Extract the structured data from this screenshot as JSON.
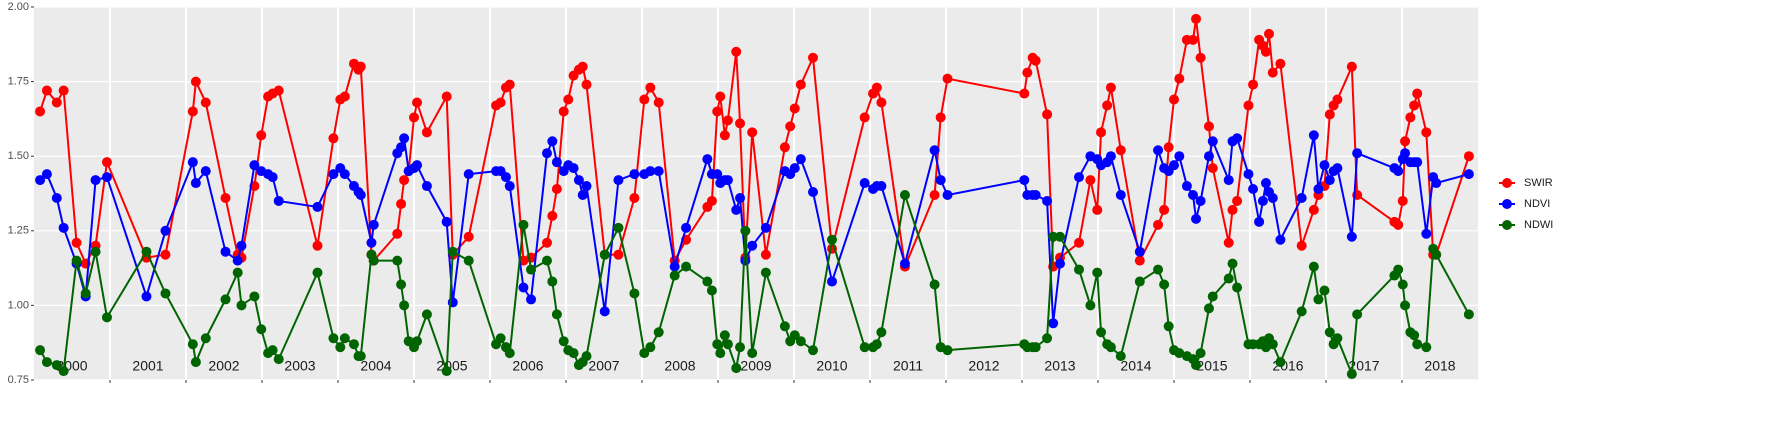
{
  "chart_data": {
    "type": "line",
    "x": [
      2000.08,
      2000.17,
      2000.3,
      2000.39,
      2000.56,
      2000.68,
      2000.81,
      2000.96,
      2001.48,
      2001.73,
      2002.09,
      2002.13,
      2002.26,
      2002.52,
      2002.68,
      2002.73,
      2002.9,
      2002.99,
      2003.08,
      2003.14,
      2003.22,
      2003.73,
      2003.94,
      2004.03,
      2004.09,
      2004.21,
      2004.27,
      2004.3,
      2004.44,
      2004.47,
      2004.78,
      2004.83,
      2004.87,
      2004.93,
      2005.0,
      2005.04,
      2005.17,
      2005.43,
      2005.51,
      2005.72,
      2006.08,
      2006.14,
      2006.21,
      2006.26,
      2006.44,
      2006.54,
      2006.75,
      2006.82,
      2006.88,
      2006.97,
      2007.03,
      2007.1,
      2007.17,
      2007.22,
      2007.27,
      2007.51,
      2007.69,
      2007.9,
      2008.03,
      2008.11,
      2008.22,
      2008.43,
      2008.58,
      2008.86,
      2008.92,
      2008.99,
      2009.03,
      2009.09,
      2009.13,
      2009.24,
      2009.29,
      2009.36,
      2009.45,
      2009.63,
      2009.88,
      2009.95,
      2010.01,
      2010.09,
      2010.25,
      2010.5,
      2010.93,
      2011.04,
      2011.09,
      2011.15,
      2011.46,
      2011.85,
      2011.93,
      2012.02,
      2013.03,
      2013.07,
      2013.14,
      2013.18,
      2013.33,
      2013.41,
      2013.5,
      2013.75,
      2013.9,
      2013.99,
      2014.04,
      2014.12,
      2014.17,
      2014.3,
      2014.55,
      2014.79,
      2014.87,
      2014.93,
      2015.0,
      2015.07,
      2015.17,
      2015.25,
      2015.29,
      2015.35,
      2015.46,
      2015.51,
      2015.72,
      2015.77,
      2015.83,
      2015.98,
      2016.04,
      2016.12,
      2016.17,
      2016.21,
      2016.25,
      2016.3,
      2016.4,
      2016.68,
      2016.84,
      2016.9,
      2016.98,
      2017.05,
      2017.1,
      2017.15,
      2017.34,
      2017.41,
      2017.9,
      2017.95,
      2018.01,
      2018.04,
      2018.11,
      2018.16,
      2018.2,
      2018.32,
      2018.41,
      2018.45,
      2018.88
    ],
    "series": [
      {
        "name": "SWIR",
        "color": "#ff0000",
        "values": [
          1.65,
          1.72,
          1.68,
          1.72,
          1.21,
          1.14,
          1.2,
          1.48,
          1.16,
          1.17,
          1.65,
          1.75,
          1.68,
          1.36,
          1.17,
          1.16,
          1.4,
          1.57,
          1.7,
          1.71,
          1.72,
          1.2,
          1.56,
          1.69,
          1.7,
          1.81,
          1.79,
          1.8,
          1.17,
          1.15,
          1.24,
          1.34,
          1.42,
          1.45,
          1.63,
          1.68,
          1.58,
          1.7,
          1.17,
          1.23,
          1.67,
          1.68,
          1.73,
          1.74,
          1.15,
          1.16,
          1.21,
          1.3,
          1.39,
          1.65,
          1.69,
          1.77,
          1.79,
          1.8,
          1.74,
          1.17,
          1.17,
          1.36,
          1.69,
          1.73,
          1.68,
          1.15,
          1.22,
          1.33,
          1.35,
          1.65,
          1.7,
          1.57,
          1.62,
          1.85,
          1.61,
          1.16,
          1.58,
          1.17,
          1.53,
          1.6,
          1.66,
          1.74,
          1.83,
          1.19,
          1.63,
          1.71,
          1.73,
          1.68,
          1.13,
          1.37,
          1.63,
          1.76,
          1.71,
          1.78,
          1.83,
          1.82,
          1.64,
          1.13,
          1.16,
          1.21,
          1.42,
          1.32,
          1.58,
          1.67,
          1.73,
          1.52,
          1.15,
          1.27,
          1.32,
          1.53,
          1.69,
          1.76,
          1.89,
          1.89,
          1.96,
          1.83,
          1.6,
          1.46,
          1.21,
          1.32,
          1.35,
          1.67,
          1.74,
          1.89,
          1.87,
          1.85,
          1.91,
          1.78,
          1.81,
          1.2,
          1.32,
          1.37,
          1.4,
          1.64,
          1.67,
          1.69,
          1.8,
          1.37,
          1.28,
          1.27,
          1.35,
          1.55,
          1.63,
          1.67,
          1.71,
          1.58,
          1.17,
          1.17,
          1.5
        ]
      },
      {
        "name": "NDVI",
        "color": "#0000ff",
        "values": [
          1.42,
          1.44,
          1.36,
          1.26,
          1.14,
          1.03,
          1.42,
          1.43,
          1.03,
          1.25,
          1.48,
          1.41,
          1.45,
          1.18,
          1.15,
          1.2,
          1.47,
          1.45,
          1.44,
          1.43,
          1.35,
          1.33,
          1.44,
          1.46,
          1.44,
          1.4,
          1.38,
          1.37,
          1.21,
          1.27,
          1.51,
          1.53,
          1.56,
          1.45,
          1.46,
          1.47,
          1.4,
          1.28,
          1.01,
          1.44,
          1.45,
          1.45,
          1.43,
          1.4,
          1.06,
          1.02,
          1.51,
          1.55,
          1.48,
          1.45,
          1.47,
          1.46,
          1.42,
          1.37,
          1.4,
          0.98,
          1.42,
          1.44,
          1.44,
          1.45,
          1.45,
          1.13,
          1.26,
          1.49,
          1.44,
          1.44,
          1.41,
          1.42,
          1.42,
          1.32,
          1.36,
          1.15,
          1.2,
          1.26,
          1.45,
          1.44,
          1.46,
          1.49,
          1.38,
          1.08,
          1.41,
          1.39,
          1.4,
          1.4,
          1.14,
          1.52,
          1.42,
          1.37,
          1.42,
          1.37,
          1.37,
          1.37,
          1.35,
          0.94,
          1.14,
          1.43,
          1.5,
          1.49,
          1.47,
          1.48,
          1.5,
          1.37,
          1.18,
          1.52,
          1.46,
          1.45,
          1.47,
          1.5,
          1.4,
          1.37,
          1.29,
          1.35,
          1.5,
          1.55,
          1.42,
          1.55,
          1.56,
          1.44,
          1.39,
          1.28,
          1.35,
          1.41,
          1.38,
          1.36,
          1.22,
          1.36,
          1.57,
          1.39,
          1.47,
          1.42,
          1.45,
          1.46,
          1.23,
          1.51,
          1.46,
          1.45,
          1.49,
          1.51,
          1.48,
          1.48,
          1.48,
          1.24,
          1.43,
          1.41,
          1.44
        ]
      },
      {
        "name": "NDWI",
        "color": "#006400",
        "values": [
          0.85,
          0.81,
          0.8,
          0.78,
          1.15,
          1.04,
          1.18,
          0.96,
          1.18,
          1.04,
          0.87,
          0.81,
          0.89,
          1.02,
          1.11,
          1.0,
          1.03,
          0.92,
          0.84,
          0.85,
          0.82,
          1.11,
          0.89,
          0.86,
          0.89,
          0.87,
          0.83,
          0.83,
          1.17,
          1.15,
          1.15,
          1.07,
          1.0,
          0.88,
          0.86,
          0.88,
          0.97,
          0.78,
          1.18,
          1.15,
          0.87,
          0.89,
          0.86,
          0.84,
          1.27,
          1.12,
          1.15,
          1.08,
          0.97,
          0.88,
          0.85,
          0.84,
          0.8,
          0.81,
          0.83,
          1.17,
          1.26,
          1.04,
          0.84,
          0.86,
          0.91,
          1.1,
          1.13,
          1.08,
          1.05,
          0.87,
          0.84,
          0.9,
          0.87,
          0.79,
          0.86,
          1.25,
          0.84,
          1.11,
          0.93,
          0.88,
          0.9,
          0.88,
          0.85,
          1.22,
          0.86,
          0.86,
          0.87,
          0.91,
          1.37,
          1.07,
          0.86,
          0.85,
          0.87,
          0.86,
          0.86,
          0.86,
          0.89,
          1.23,
          1.23,
          1.12,
          1.0,
          1.11,
          0.91,
          0.87,
          0.86,
          0.83,
          1.08,
          1.12,
          1.07,
          0.93,
          0.85,
          0.84,
          0.83,
          0.82,
          0.8,
          0.84,
          0.99,
          1.03,
          1.09,
          1.14,
          1.06,
          0.87,
          0.87,
          0.87,
          0.88,
          0.86,
          0.89,
          0.87,
          0.81,
          0.98,
          1.13,
          1.02,
          1.05,
          0.91,
          0.87,
          0.89,
          0.77,
          0.97,
          1.1,
          1.12,
          1.07,
          1.0,
          0.91,
          0.9,
          0.87,
          0.86,
          1.19,
          1.17,
          0.97
        ]
      }
    ],
    "xlim": [
      2000,
      2019
    ],
    "xticks": [
      {
        "value": 2000.5,
        "label": "2000"
      },
      {
        "value": 2001.5,
        "label": "2001"
      },
      {
        "value": 2002.5,
        "label": "2002"
      },
      {
        "value": 2003.5,
        "label": "2003"
      },
      {
        "value": 2004.5,
        "label": "2004"
      },
      {
        "value": 2005.5,
        "label": "2005"
      },
      {
        "value": 2006.5,
        "label": "2006"
      },
      {
        "value": 2007.5,
        "label": "2007"
      },
      {
        "value": 2008.5,
        "label": "2008"
      },
      {
        "value": 2009.5,
        "label": "2009"
      },
      {
        "value": 2010.5,
        "label": "2010"
      },
      {
        "value": 2011.5,
        "label": "2011"
      },
      {
        "value": 2012.5,
        "label": "2012"
      },
      {
        "value": 2013.5,
        "label": "2013"
      },
      {
        "value": 2014.5,
        "label": "2014"
      },
      {
        "value": 2015.5,
        "label": "2015"
      },
      {
        "value": 2016.5,
        "label": "2016"
      },
      {
        "value": 2017.5,
        "label": "2017"
      },
      {
        "value": 2018.5,
        "label": "2018"
      }
    ],
    "xgrid": [
      2001,
      2002,
      2003,
      2004,
      2005,
      2006,
      2007,
      2008,
      2009,
      2010,
      2011,
      2012,
      2013,
      2014,
      2015,
      2016,
      2017,
      2018
    ],
    "ylim": [
      0.75,
      2.0
    ],
    "yticks": [
      {
        "value": 0.75,
        "label": "0.75"
      },
      {
        "value": 1.0,
        "label": "1.00"
      },
      {
        "value": 1.25,
        "label": "1.25"
      },
      {
        "value": 1.5,
        "label": "1.50"
      },
      {
        "value": 1.75,
        "label": "1.75"
      },
      {
        "value": 2.0,
        "label": "2.00"
      }
    ],
    "grid": true,
    "legend": "right"
  }
}
